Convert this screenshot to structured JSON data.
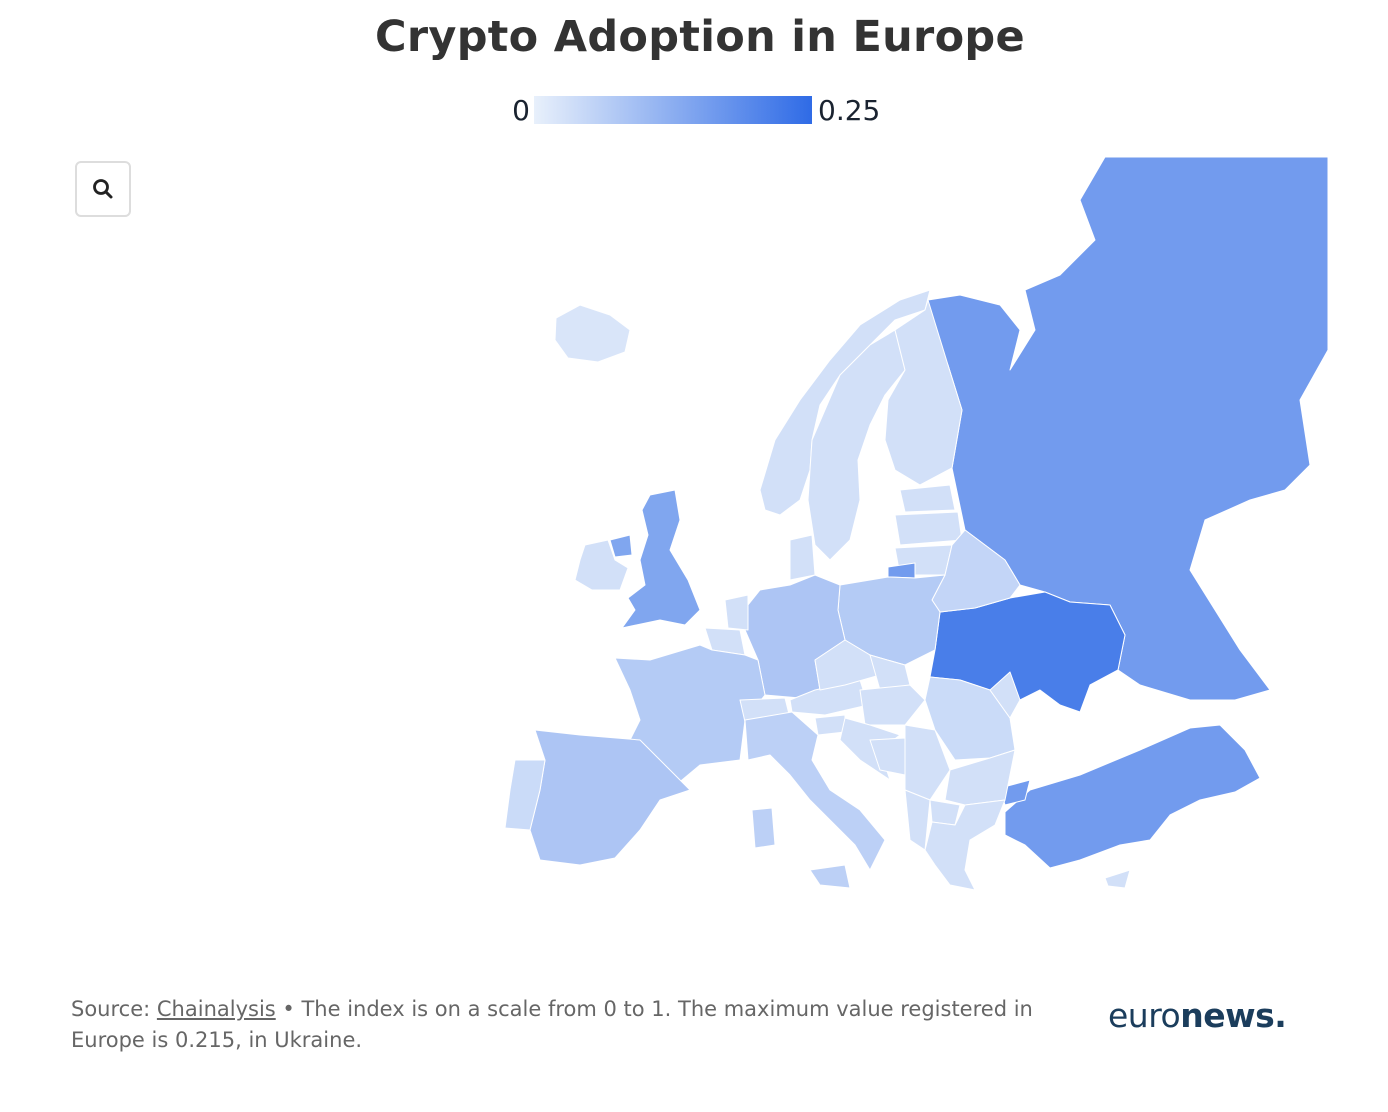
{
  "title": "Crypto Adoption in Europe",
  "legend": {
    "min_label": "0",
    "max_label": "0.25",
    "min": 0,
    "max": 0.25,
    "color_low": "#e8f0fb",
    "color_high": "#2f6be6"
  },
  "footer": {
    "source_prefix": "Source: ",
    "source_link": "Chainalysis",
    "note": " • The index is on a scale from 0 to 1. The maximum value registered in Europe is 0.215, in Ukraine."
  },
  "logo": {
    "part1": "euro",
    "part2": "news",
    "dot": "."
  },
  "icons": {
    "search": "search-icon",
    "logo": "euronews-logo"
  },
  "chart_data": {
    "type": "choropleth",
    "title": "Crypto Adoption in Europe",
    "scale": [
      0,
      0.25
    ],
    "regions": [
      {
        "name": "Ukraine",
        "value": 0.215
      },
      {
        "name": "Russia",
        "value": 0.16
      },
      {
        "name": "Turkey",
        "value": 0.16
      },
      {
        "name": "United Kingdom",
        "value": 0.14
      },
      {
        "name": "Spain",
        "value": 0.08
      },
      {
        "name": "Germany",
        "value": 0.08
      },
      {
        "name": "Poland",
        "value": 0.07
      },
      {
        "name": "France",
        "value": 0.07
      },
      {
        "name": "Italy",
        "value": 0.06
      },
      {
        "name": "Belarus",
        "value": 0.05
      },
      {
        "name": "Portugal",
        "value": 0.04
      },
      {
        "name": "Ireland",
        "value": 0.03
      },
      {
        "name": "Norway",
        "value": 0.03
      },
      {
        "name": "Sweden",
        "value": 0.03
      },
      {
        "name": "Finland",
        "value": 0.03
      },
      {
        "name": "Romania",
        "value": 0.04
      },
      {
        "name": "Iceland",
        "value": 0.02
      }
    ]
  }
}
